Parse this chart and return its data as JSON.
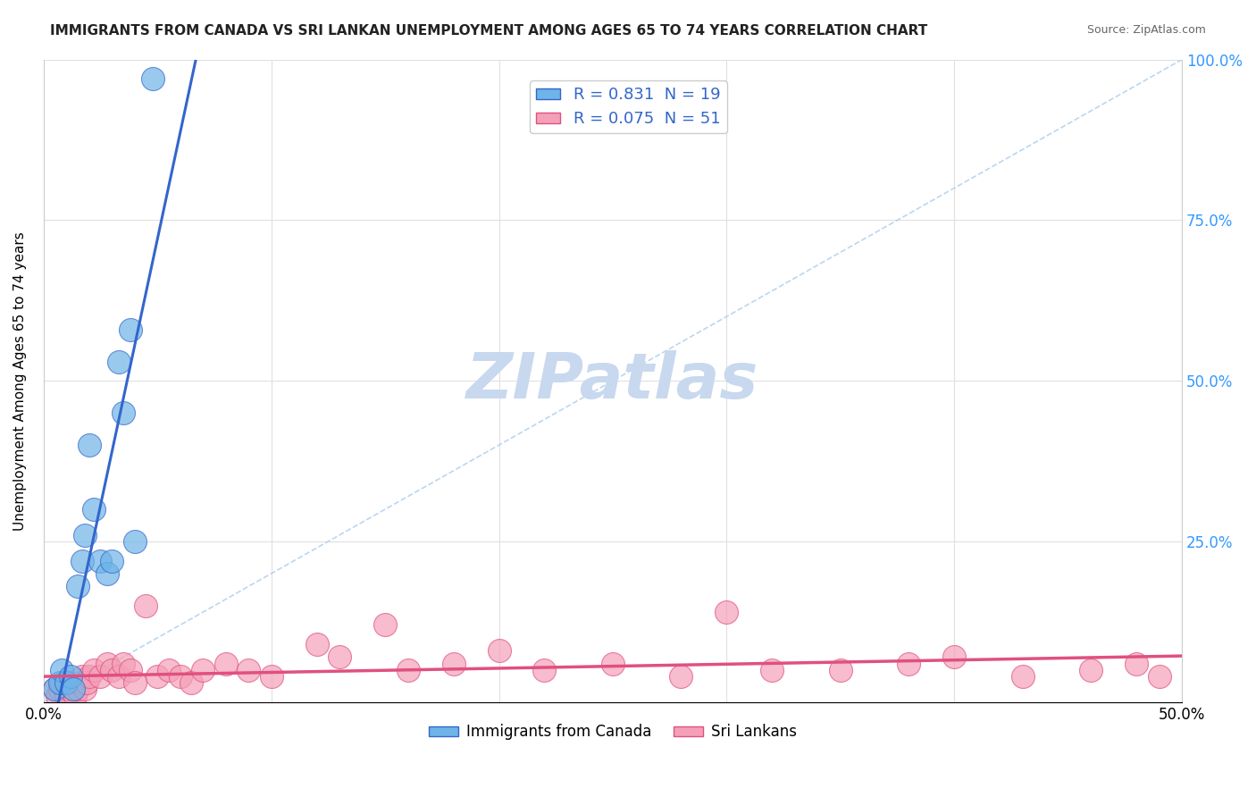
{
  "title": "IMMIGRANTS FROM CANADA VS SRI LANKAN UNEMPLOYMENT AMONG AGES 65 TO 74 YEARS CORRELATION CHART",
  "source": "Source: ZipAtlas.com",
  "ylabel": "Unemployment Among Ages 65 to 74 years",
  "xlim": [
    0.0,
    0.5
  ],
  "ylim": [
    0.0,
    1.0
  ],
  "xticks": [
    0.0,
    0.1,
    0.2,
    0.3,
    0.4,
    0.5
  ],
  "yticks": [
    0.0,
    0.25,
    0.5,
    0.75,
    1.0
  ],
  "xticklabels": [
    "0.0%",
    "",
    "",
    "",
    "",
    "50.0%"
  ],
  "yticklabels": [
    "",
    "25.0%",
    "50.0%",
    "75.0%",
    "100.0%"
  ],
  "canada_x": [
    0.005,
    0.007,
    0.008,
    0.01,
    0.012,
    0.013,
    0.015,
    0.017,
    0.018,
    0.02,
    0.022,
    0.025,
    0.028,
    0.03,
    0.033,
    0.035,
    0.038,
    0.04,
    0.048
  ],
  "canada_y": [
    0.02,
    0.03,
    0.05,
    0.03,
    0.04,
    0.02,
    0.18,
    0.22,
    0.26,
    0.4,
    0.3,
    0.22,
    0.2,
    0.22,
    0.53,
    0.45,
    0.58,
    0.25,
    0.97
  ],
  "srilanka_x": [
    0.005,
    0.006,
    0.007,
    0.008,
    0.009,
    0.01,
    0.011,
    0.012,
    0.013,
    0.014,
    0.015,
    0.016,
    0.017,
    0.018,
    0.019,
    0.02,
    0.022,
    0.025,
    0.028,
    0.03,
    0.033,
    0.035,
    0.038,
    0.04,
    0.045,
    0.05,
    0.055,
    0.06,
    0.065,
    0.07,
    0.08,
    0.09,
    0.1,
    0.12,
    0.13,
    0.15,
    0.16,
    0.18,
    0.2,
    0.22,
    0.25,
    0.28,
    0.3,
    0.32,
    0.35,
    0.38,
    0.4,
    0.43,
    0.46,
    0.48,
    0.49
  ],
  "srilanka_y": [
    0.02,
    0.01,
    0.02,
    0.03,
    0.02,
    0.01,
    0.02,
    0.03,
    0.02,
    0.01,
    0.02,
    0.03,
    0.04,
    0.02,
    0.03,
    0.04,
    0.05,
    0.04,
    0.06,
    0.05,
    0.04,
    0.06,
    0.05,
    0.03,
    0.15,
    0.04,
    0.05,
    0.04,
    0.03,
    0.05,
    0.06,
    0.05,
    0.04,
    0.09,
    0.07,
    0.12,
    0.05,
    0.06,
    0.08,
    0.05,
    0.06,
    0.04,
    0.14,
    0.05,
    0.05,
    0.06,
    0.07,
    0.04,
    0.05,
    0.06,
    0.04
  ],
  "canada_color": "#6EB4E8",
  "srilanka_color": "#F4A0B8",
  "canada_trend_color": "#3366CC",
  "srilanka_trend_color": "#E05080",
  "ref_line_color": "#AACCEE",
  "watermark_color": "#C8D8EE",
  "legend_r1": "R = 0.831",
  "legend_n1": "N = 19",
  "legend_r2": "R = 0.075",
  "legend_n2": "N = 51",
  "background_color": "#FFFFFF",
  "grid_color": "#E0E0E0"
}
